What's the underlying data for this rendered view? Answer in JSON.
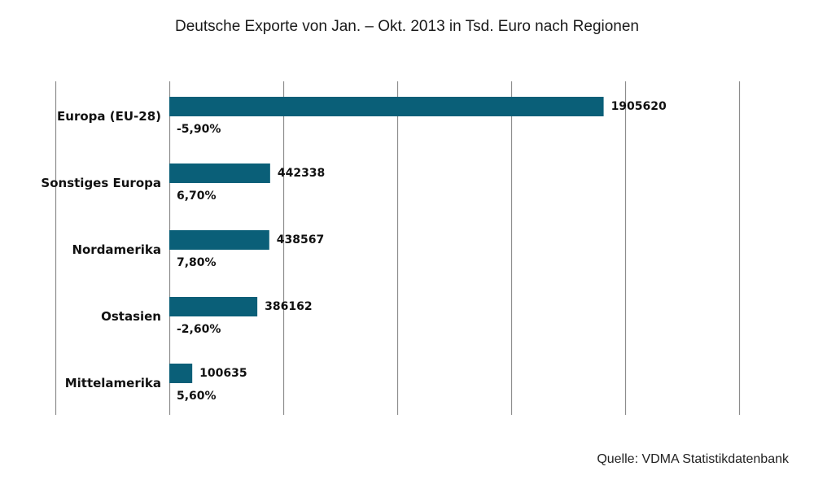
{
  "chart_data": {
    "type": "bar",
    "orientation": "horizontal",
    "title": "Deutsche Exporte von Jan. – Okt. 2013 in Tsd. Euro nach Regionen",
    "categories": [
      "Europa (EU-28)",
      "Sonstiges Europa",
      "Nordamerika",
      "Ostasien",
      "Mittelamerika"
    ],
    "values": [
      1905620,
      442338,
      438567,
      386162,
      100635
    ],
    "value_labels": [
      "1905620",
      "442338",
      "438567",
      "386162",
      "100635"
    ],
    "change_labels": [
      "-5,90%",
      "6,70%",
      "7,80%",
      "-2,60%",
      "5,60%"
    ],
    "xlim": [
      -500000,
      2500000
    ],
    "xlabel": "",
    "ylabel": "",
    "grid": true,
    "gridline_step": 500000,
    "bar_color": "#0a5f78",
    "source": "Quelle: VDMA Statistikdatenbank"
  }
}
